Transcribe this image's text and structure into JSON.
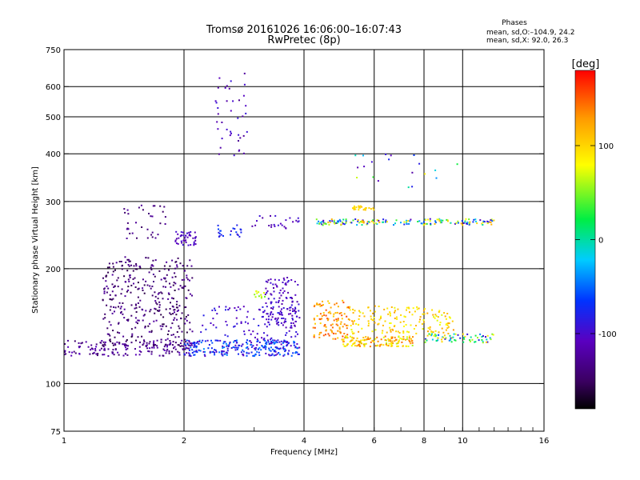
{
  "header": {
    "title_line1": "Tromsø 20161026 16:06:00–16:07:43",
    "title_line2": "RwPretec (8p)"
  },
  "stats": {
    "heading": "Phases",
    "line_o": "mean, sd,O:–104.9, 24.2",
    "line_x": "mean, sd,X:  92.0, 26.3"
  },
  "colorbar": {
    "unit_label": "[deg]",
    "tick_labels": [
      "100",
      "0",
      "-100"
    ],
    "tick_values": [
      100,
      0,
      -100
    ],
    "range": [
      -180,
      180
    ],
    "palette": "rainbow (black-purple-blue-cyan-green-yellow-orange-red)"
  },
  "chart_data": {
    "type": "scatter",
    "xlabel": "Frequency [MHz]",
    "ylabel": "Stationary phase Virtual Height [km]",
    "x_scale": "log",
    "y_scale": "log",
    "xlim": [
      1,
      16
    ],
    "ylim": [
      75,
      750
    ],
    "x_ticks": [
      1,
      2,
      4,
      6,
      8,
      10,
      16
    ],
    "x_tick_labels": [
      "1",
      "2",
      "4",
      "6",
      "8",
      "10",
      "16"
    ],
    "y_ticks": [
      75,
      100,
      200,
      300,
      400,
      500,
      600,
      750
    ],
    "y_tick_labels": [
      "75",
      "100",
      "200",
      "300",
      "400",
      "500",
      "600",
      "750"
    ],
    "grid": true,
    "color_by": "phase (deg)",
    "clusters": [
      {
        "f": [
          1.0,
          2.1
        ],
        "h": [
          118,
          130
        ],
        "phase": [
          -150,
          -105
        ],
        "n": 160
      },
      {
        "f": [
          1.25,
          2.1
        ],
        "h": [
          125,
          215
        ],
        "phase": [
          -160,
          -120
        ],
        "n": 360
      },
      {
        "f": [
          1.4,
          1.8
        ],
        "h": [
          240,
          295
        ],
        "phase": [
          -150,
          -120
        ],
        "n": 35
      },
      {
        "f": [
          1.9,
          2.15
        ],
        "h": [
          230,
          250
        ],
        "phase": [
          -120,
          -90
        ],
        "n": 45
      },
      {
        "f": [
          2.0,
          3.9
        ],
        "h": [
          118,
          130
        ],
        "phase": [
          -110,
          -40
        ],
        "n": 260
      },
      {
        "f": [
          2.2,
          3.9
        ],
        "h": [
          130,
          160
        ],
        "phase": [
          -110,
          -80
        ],
        "n": 90
      },
      {
        "f": [
          3.2,
          3.9
        ],
        "h": [
          140,
          190
        ],
        "phase": [
          -120,
          -90
        ],
        "n": 120
      },
      {
        "f": [
          3.0,
          3.2
        ],
        "h": [
          165,
          175
        ],
        "phase": [
          40,
          80
        ],
        "n": 12
      },
      {
        "f": [
          2.4,
          2.9
        ],
        "h": [
          390,
          650
        ],
        "phase": [
          -130,
          -90
        ],
        "n": 40
      },
      {
        "f": [
          2.4,
          2.8
        ],
        "h": [
          240,
          260
        ],
        "phase": [
          -100,
          -60
        ],
        "n": 22
      },
      {
        "f": [
          2.9,
          3.9
        ],
        "h": [
          255,
          275
        ],
        "phase": [
          -120,
          -90
        ],
        "n": 25
      },
      {
        "f": [
          4.2,
          5.2
        ],
        "h": [
          130,
          165
        ],
        "phase": [
          100,
          160
        ],
        "n": 110
      },
      {
        "f": [
          5.0,
          7.5
        ],
        "h": [
          125,
          133
        ],
        "phase": [
          60,
          150
        ],
        "n": 140
      },
      {
        "f": [
          5.2,
          9.5
        ],
        "h": [
          135,
          160
        ],
        "phase": [
          70,
          130
        ],
        "n": 160
      },
      {
        "f": [
          8.0,
          12.0
        ],
        "h": [
          128,
          135
        ],
        "phase": [
          -100,
          110
        ],
        "n": 70
      },
      {
        "f": [
          4.3,
          12.0
        ],
        "h": [
          260,
          270
        ],
        "phase": [
          -110,
          130
        ],
        "n": 170
      },
      {
        "f": [
          5.3,
          6.0
        ],
        "h": [
          285,
          292
        ],
        "phase": [
          90,
          110
        ],
        "n": 25
      },
      {
        "f": [
          5.3,
          9.8
        ],
        "h": [
          320,
          400
        ],
        "phase": [
          -120,
          100
        ],
        "n": 20
      }
    ]
  }
}
